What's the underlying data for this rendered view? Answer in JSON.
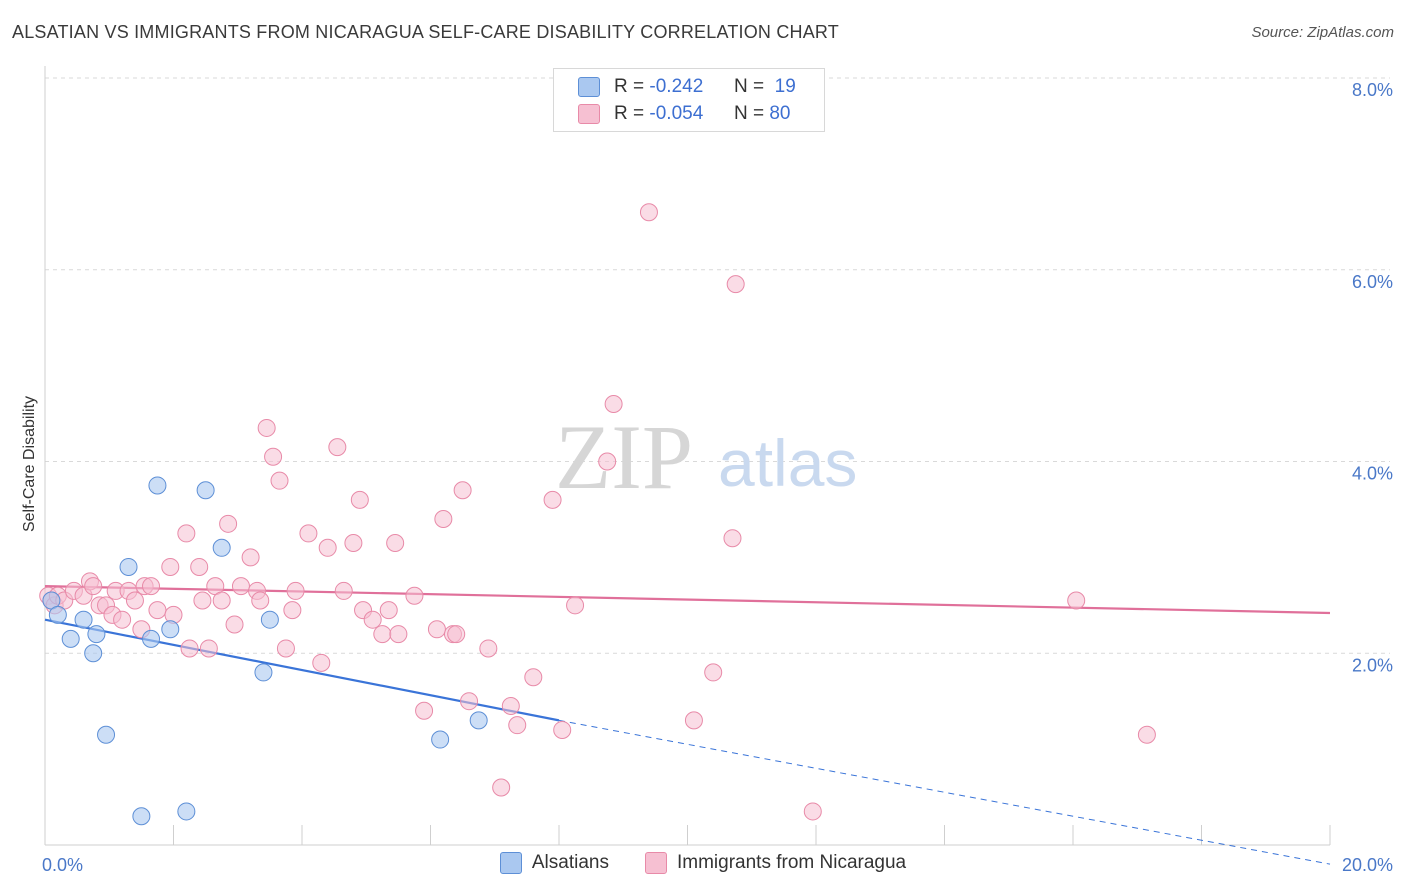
{
  "header": {
    "title": "ALSATIAN VS IMMIGRANTS FROM NICARAGUA SELF-CARE DISABILITY CORRELATION CHART",
    "source": "Source: ZipAtlas.com"
  },
  "watermark": {
    "zip": "ZIP",
    "atlas": "atlas"
  },
  "legend": {
    "rows": [
      {
        "r_label": "R =",
        "r_value": "-0.242",
        "n_label": "N =",
        "n_value": "19",
        "color": "#aac8f0"
      },
      {
        "r_label": "R =",
        "r_value": "-0.054",
        "n_label": "N =",
        "n_value": "80",
        "color": "#f6b8cc"
      }
    ]
  },
  "bottom_legend": {
    "series1": "Alsatians",
    "series2": "Immigrants from Nicaragua"
  },
  "colors": {
    "blue_fill": "#aac8f0",
    "blue_stroke": "#5d8fd6",
    "blue_line": "#3a74d8",
    "pink_fill": "#f6c0d2",
    "pink_stroke": "#e88aa8",
    "pink_line": "#e0709a",
    "tick": "#4a78c8",
    "grid": "#d9d9d9"
  },
  "chart_data": {
    "type": "scatter",
    "title": "ALSATIAN VS IMMIGRANTS FROM NICARAGUA SELF-CARE DISABILITY CORRELATION CHART",
    "xlabel": "",
    "ylabel": "Self-Care Disability",
    "xlim": [
      0,
      20
    ],
    "ylim": [
      0,
      8
    ],
    "x_ticks": [
      {
        "value": 0,
        "label": "0.0%"
      },
      {
        "value": 20,
        "label": "20.0%"
      }
    ],
    "y_ticks": [
      {
        "value": 2,
        "label": "2.0%"
      },
      {
        "value": 4,
        "label": "4.0%"
      },
      {
        "value": 6,
        "label": "6.0%"
      },
      {
        "value": 8,
        "label": "8.0%"
      }
    ],
    "grid": true,
    "legend_position": "top-center",
    "series": [
      {
        "name": "Alsatians",
        "points": [
          [
            0.1,
            2.55
          ],
          [
            0.2,
            2.4
          ],
          [
            0.4,
            2.15
          ],
          [
            0.6,
            2.35
          ],
          [
            0.75,
            2.0
          ],
          [
            0.8,
            2.2
          ],
          [
            0.95,
            1.15
          ],
          [
            1.3,
            2.9
          ],
          [
            1.5,
            0.3
          ],
          [
            1.65,
            2.15
          ],
          [
            1.75,
            3.75
          ],
          [
            1.95,
            2.25
          ],
          [
            2.2,
            0.35
          ],
          [
            2.5,
            3.7
          ],
          [
            2.75,
            3.1
          ],
          [
            3.4,
            1.8
          ],
          [
            3.5,
            2.35
          ],
          [
            6.15,
            1.1
          ],
          [
            6.75,
            1.3
          ]
        ],
        "trend": {
          "x0": 0,
          "y0": 2.35,
          "x1": 8.0,
          "y1": 1.3,
          "dash_to_x": 20,
          "dash_to_y": -0.2
        }
      },
      {
        "name": "Immigrants from Nicaragua",
        "points": [
          [
            0.05,
            2.6
          ],
          [
            0.1,
            2.55
          ],
          [
            0.15,
            2.5
          ],
          [
            0.2,
            2.6
          ],
          [
            0.3,
            2.55
          ],
          [
            0.45,
            2.65
          ],
          [
            0.6,
            2.6
          ],
          [
            0.7,
            2.75
          ],
          [
            0.75,
            2.7
          ],
          [
            0.85,
            2.5
          ],
          [
            0.95,
            2.5
          ],
          [
            1.05,
            2.4
          ],
          [
            1.1,
            2.65
          ],
          [
            1.2,
            2.35
          ],
          [
            1.3,
            2.65
          ],
          [
            1.4,
            2.55
          ],
          [
            1.5,
            2.25
          ],
          [
            1.55,
            2.7
          ],
          [
            1.65,
            2.7
          ],
          [
            1.75,
            2.45
          ],
          [
            1.95,
            2.9
          ],
          [
            2.0,
            2.4
          ],
          [
            2.2,
            3.25
          ],
          [
            2.25,
            2.05
          ],
          [
            2.4,
            2.9
          ],
          [
            2.45,
            2.55
          ],
          [
            2.55,
            2.05
          ],
          [
            2.65,
            2.7
          ],
          [
            2.75,
            2.55
          ],
          [
            2.85,
            3.35
          ],
          [
            2.95,
            2.3
          ],
          [
            3.05,
            2.7
          ],
          [
            3.2,
            3.0
          ],
          [
            3.3,
            2.65
          ],
          [
            3.35,
            2.55
          ],
          [
            3.45,
            4.35
          ],
          [
            3.55,
            4.05
          ],
          [
            3.65,
            3.8
          ],
          [
            3.75,
            2.05
          ],
          [
            3.85,
            2.45
          ],
          [
            3.9,
            2.65
          ],
          [
            4.1,
            3.25
          ],
          [
            4.3,
            1.9
          ],
          [
            4.4,
            3.1
          ],
          [
            4.55,
            4.15
          ],
          [
            4.65,
            2.65
          ],
          [
            4.8,
            3.15
          ],
          [
            4.9,
            3.6
          ],
          [
            4.95,
            2.45
          ],
          [
            5.1,
            2.35
          ],
          [
            5.25,
            2.2
          ],
          [
            5.35,
            2.45
          ],
          [
            5.45,
            3.15
          ],
          [
            5.5,
            2.2
          ],
          [
            5.75,
            2.6
          ],
          [
            5.9,
            1.4
          ],
          [
            6.1,
            2.25
          ],
          [
            6.2,
            3.4
          ],
          [
            6.35,
            2.2
          ],
          [
            6.4,
            2.2
          ],
          [
            6.5,
            3.7
          ],
          [
            6.6,
            1.5
          ],
          [
            6.9,
            2.05
          ],
          [
            7.1,
            0.6
          ],
          [
            7.25,
            1.45
          ],
          [
            7.35,
            1.25
          ],
          [
            7.6,
            1.75
          ],
          [
            7.9,
            3.6
          ],
          [
            8.05,
            1.2
          ],
          [
            8.25,
            2.5
          ],
          [
            8.75,
            4.0
          ],
          [
            8.85,
            4.6
          ],
          [
            9.4,
            6.6
          ],
          [
            10.1,
            1.3
          ],
          [
            10.4,
            1.8
          ],
          [
            10.7,
            3.2
          ],
          [
            10.75,
            5.85
          ],
          [
            11.95,
            0.35
          ],
          [
            16.05,
            2.55
          ],
          [
            17.15,
            1.15
          ]
        ],
        "trend": {
          "x0": 0,
          "y0": 2.7,
          "x1": 20,
          "y1": 2.42
        }
      }
    ]
  }
}
